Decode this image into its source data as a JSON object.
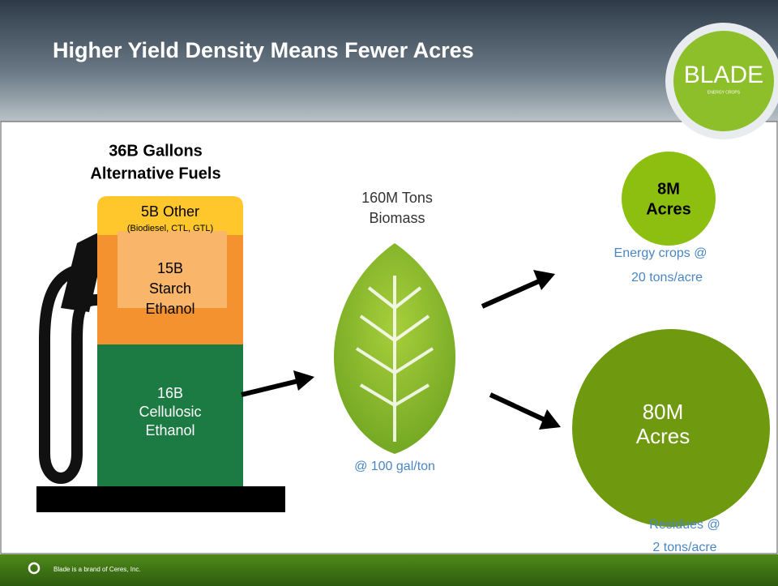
{
  "header": {
    "title": "Higher Yield Density Means Fewer Acres"
  },
  "logo": {
    "name": "BLADE",
    "tagline": "ENERGY CROPS"
  },
  "pump": {
    "title": [
      "36B Gallons",
      "Alternative Fuels"
    ],
    "segments": [
      {
        "lines": [
          "5B Other"
        ],
        "note": "(Biodiesel, CTL, GTL)"
      },
      {
        "lines": [
          "15B",
          "Starch",
          "Ethanol"
        ]
      },
      {
        "lines": [
          "16B",
          "Cellulosic",
          "Ethanol"
        ]
      }
    ]
  },
  "biomass": {
    "label": [
      "160M Tons",
      "Biomass"
    ],
    "note": "@ 100 gal/ton"
  },
  "outcomes": [
    {
      "circle": [
        "8M",
        "Acres"
      ],
      "note": [
        "Energy crops @",
        "20 tons/acre"
      ]
    },
    {
      "circle": [
        "80M",
        "Acres"
      ],
      "note": [
        "Residues @",
        "2 tons/acre"
      ]
    }
  ],
  "footer": {
    "text": "Blade is a brand of Ceres, Inc."
  }
}
